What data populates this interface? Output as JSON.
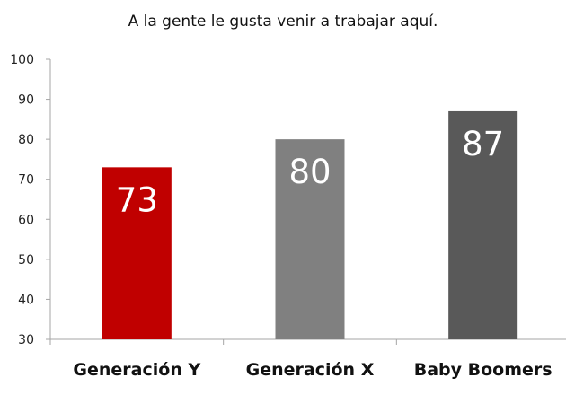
{
  "chart_data": {
    "type": "bar",
    "title": "A la gente le gusta venir a trabajar aquí.",
    "categories": [
      "Generación Y",
      "Generación X",
      "Baby Boomers"
    ],
    "values": [
      73,
      80,
      87
    ],
    "data_labels": [
      "73",
      "80",
      "87"
    ],
    "bar_colors": [
      "#c00000",
      "#808080",
      "#595959"
    ],
    "ylim": [
      30,
      100
    ],
    "yticks": [
      30,
      40,
      50,
      60,
      70,
      80,
      90,
      100
    ],
    "ytick_labels": [
      "30",
      "40",
      "50",
      "60",
      "70",
      "80",
      "90",
      "100"
    ],
    "grid": false,
    "legend": "none",
    "xlabel": "",
    "ylabel": ""
  }
}
